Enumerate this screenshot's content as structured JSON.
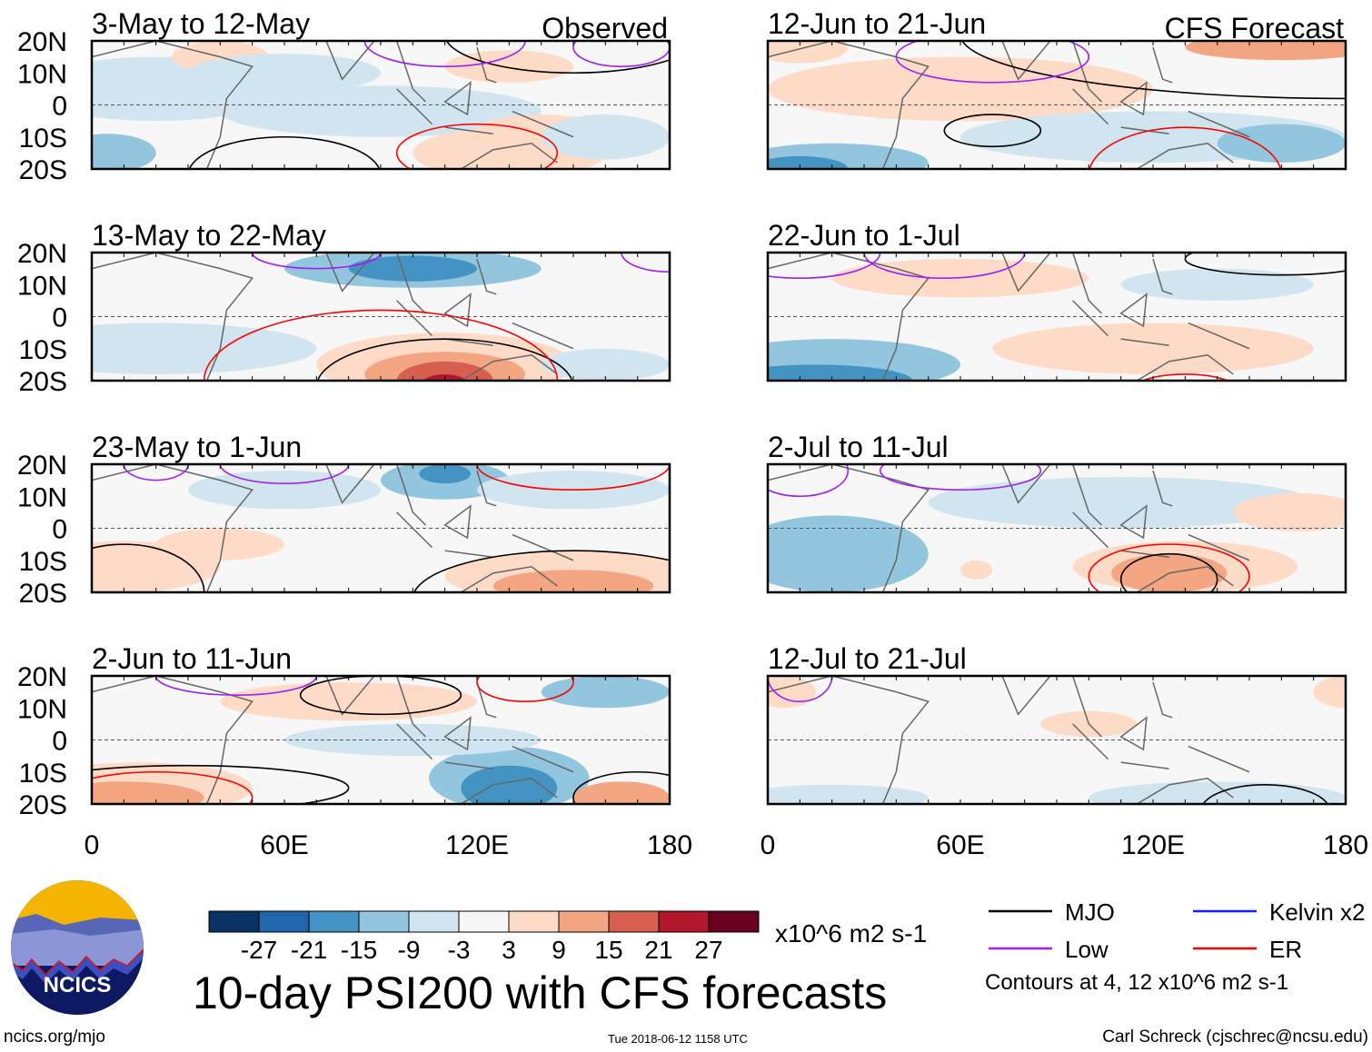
{
  "chart_data": {
    "type": "heatmap",
    "title": "10-day PSI200 with CFS forecasts",
    "columns": [
      {
        "header": "Observed",
        "panels": [
          "3-May to 12-May",
          "13-May to 22-May",
          "23-May to 1-Jun",
          "2-Jun to 11-Jun"
        ]
      },
      {
        "header": "CFS Forecast",
        "panels": [
          "12-Jun to 21-Jun",
          "22-Jun to 1-Jul",
          "2-Jul to 11-Jul",
          "12-Jul to 21-Jul"
        ]
      }
    ],
    "y_ticks": [
      "20N",
      "10N",
      "0",
      "10S",
      "20S"
    ],
    "x_ticks": [
      "0",
      "60E",
      "120E",
      "180"
    ],
    "xlim": [
      0,
      180
    ],
    "ylim": [
      -20,
      20
    ],
    "colorbar": {
      "levels": [
        "-27",
        "-21",
        "-15",
        "-9",
        "-3",
        "3",
        "9",
        "15",
        "21",
        "27"
      ],
      "colors": [
        "#0b3264",
        "#2166ac",
        "#4393c3",
        "#92c5de",
        "#d1e5f0",
        "#f7f7f7",
        "#fddbc7",
        "#f4a582",
        "#d6604d",
        "#b2182b",
        "#67001f"
      ],
      "units": "x10^6 m2 s-1"
    },
    "legend": [
      {
        "label": "MJO",
        "color": "#000000"
      },
      {
        "label": "Kelvin x2",
        "color": "#1a1aff"
      },
      {
        "label": "Low",
        "color": "#a020f0"
      },
      {
        "label": "ER",
        "color": "#ff0000"
      }
    ],
    "contour_note": "Contours at 4, 12 x10^6 m2 s-1"
  },
  "footer": {
    "logo_text": "NCICS",
    "url": "ncics.org/mjo",
    "timestamp": "Tue 2018-06-12 1158 UTC",
    "author": "Carl Schreck (cjschrec@ncsu.edu)"
  }
}
